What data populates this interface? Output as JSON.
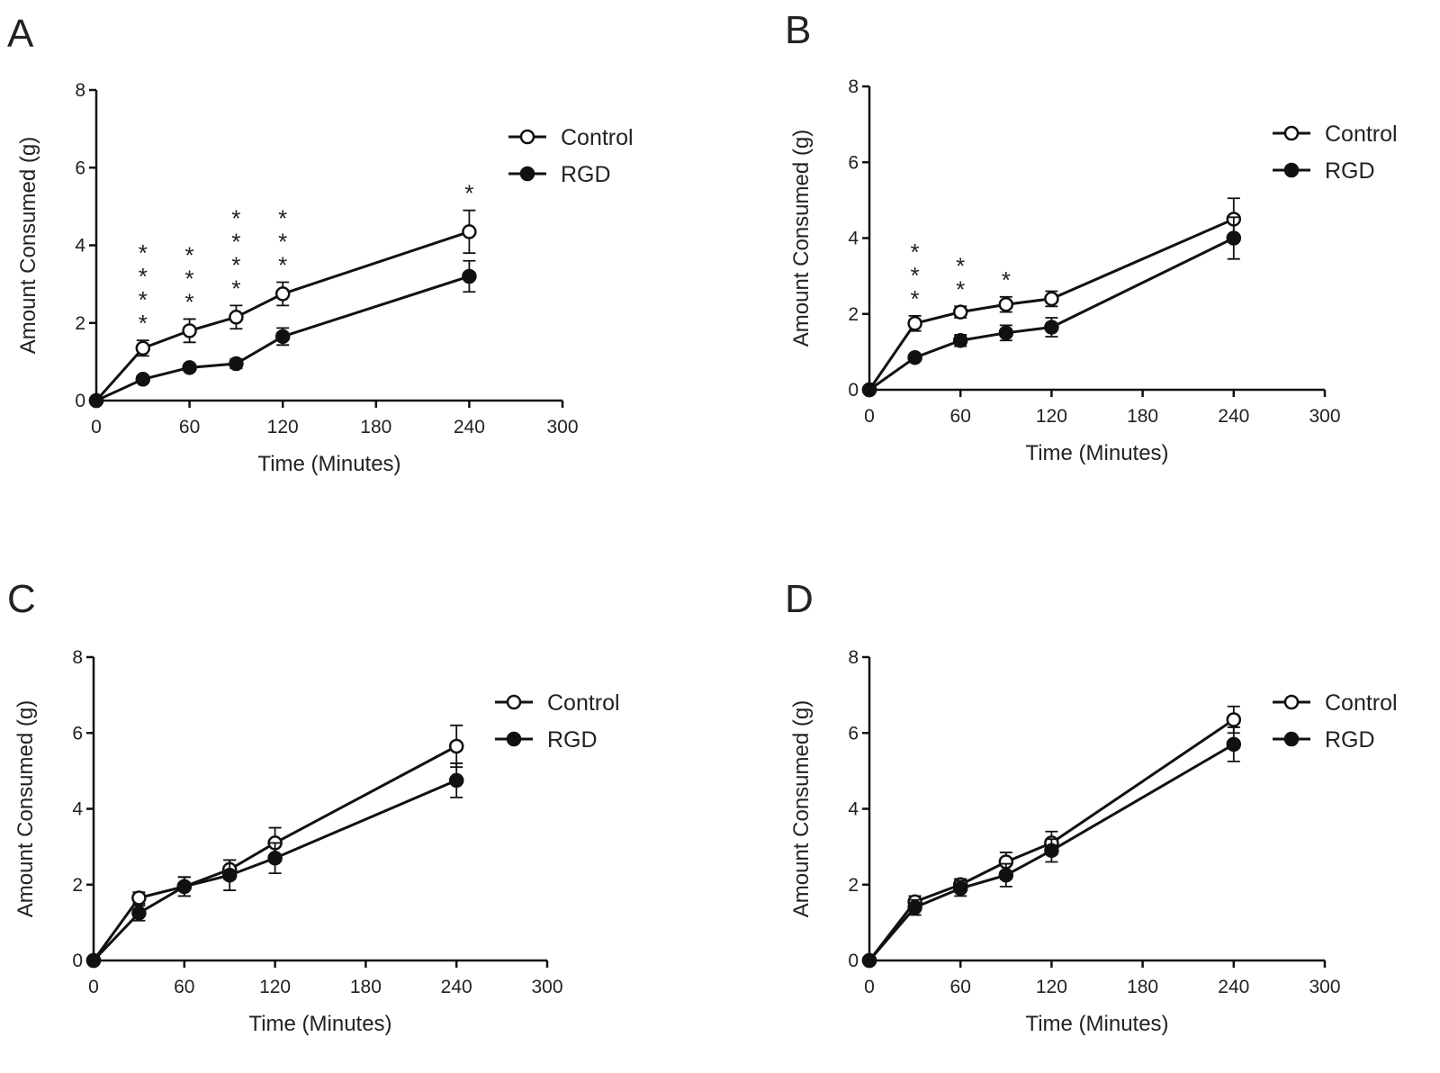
{
  "chart_data": [
    {
      "type": "line",
      "panel": "A",
      "xlabel": "Time (Minutes)",
      "ylabel": "Amount Consumed (g)",
      "x": [
        0,
        30,
        60,
        90,
        120,
        240
      ],
      "xlim": [
        0,
        300
      ],
      "xticks": [
        0,
        60,
        120,
        180,
        240,
        300
      ],
      "ylim": [
        0,
        8
      ],
      "yticks": [
        0,
        2,
        4,
        6,
        8
      ],
      "series": [
        {
          "name": "Control",
          "color": "#111111",
          "marker": "open",
          "values": [
            0,
            1.35,
            1.8,
            2.15,
            2.75,
            4.35
          ],
          "errors": [
            0,
            0.2,
            0.3,
            0.3,
            0.3,
            0.55
          ]
        },
        {
          "name": "RGD",
          "color": "#111111",
          "marker": "filled",
          "values": [
            0,
            0.55,
            0.85,
            0.95,
            1.65,
            3.2
          ],
          "errors": [
            0,
            0.08,
            0.08,
            0.12,
            0.22,
            0.4
          ]
        }
      ],
      "annotations": [
        {
          "x": 30,
          "text": "****"
        },
        {
          "x": 60,
          "text": "***"
        },
        {
          "x": 90,
          "text": "****"
        },
        {
          "x": 120,
          "text": "***"
        },
        {
          "x": 240,
          "text": "*"
        }
      ]
    },
    {
      "type": "line",
      "panel": "B",
      "xlabel": "Time (Minutes)",
      "ylabel": "Amount Consumed (g)",
      "x": [
        0,
        30,
        60,
        90,
        120,
        240
      ],
      "xlim": [
        0,
        300
      ],
      "xticks": [
        0,
        60,
        120,
        180,
        240,
        300
      ],
      "ylim": [
        0,
        8
      ],
      "yticks": [
        0,
        2,
        4,
        6,
        8
      ],
      "series": [
        {
          "name": "Control",
          "color": "#111111",
          "marker": "open",
          "values": [
            0,
            1.75,
            2.05,
            2.25,
            2.4,
            4.5
          ],
          "errors": [
            0,
            0.2,
            0.15,
            0.2,
            0.2,
            0.55
          ]
        },
        {
          "name": "RGD",
          "color": "#111111",
          "marker": "filled",
          "values": [
            0,
            0.85,
            1.3,
            1.5,
            1.65,
            4.0
          ],
          "errors": [
            0,
            0.08,
            0.15,
            0.2,
            0.25,
            0.55
          ]
        }
      ],
      "annotations": [
        {
          "x": 30,
          "text": "***"
        },
        {
          "x": 60,
          "text": "**"
        },
        {
          "x": 90,
          "text": "*"
        }
      ]
    },
    {
      "type": "line",
      "panel": "C",
      "xlabel": "Time (Minutes)",
      "ylabel": "Amount Consumed (g)",
      "x": [
        0,
        30,
        60,
        90,
        120,
        240
      ],
      "xlim": [
        0,
        300
      ],
      "xticks": [
        0,
        60,
        120,
        180,
        240,
        300
      ],
      "ylim": [
        0,
        8
      ],
      "yticks": [
        0,
        2,
        4,
        6,
        8
      ],
      "series": [
        {
          "name": "Control",
          "color": "#111111",
          "marker": "open",
          "values": [
            0,
            1.65,
            1.95,
            2.4,
            3.1,
            5.65
          ],
          "errors": [
            0,
            0.15,
            0.25,
            0.25,
            0.4,
            0.55
          ]
        },
        {
          "name": "RGD",
          "color": "#111111",
          "marker": "filled",
          "values": [
            0,
            1.25,
            1.95,
            2.25,
            2.7,
            4.75
          ],
          "errors": [
            0,
            0.2,
            0.25,
            0.4,
            0.4,
            0.45
          ]
        }
      ]
    },
    {
      "type": "line",
      "panel": "D",
      "xlabel": "Time (Minutes)",
      "ylabel": "Amount Consumed (g)",
      "x": [
        0,
        30,
        60,
        90,
        120,
        240
      ],
      "xlim": [
        0,
        300
      ],
      "xticks": [
        0,
        60,
        120,
        180,
        240,
        300
      ],
      "ylim": [
        0,
        8
      ],
      "yticks": [
        0,
        2,
        4,
        6,
        8
      ],
      "series": [
        {
          "name": "Control",
          "color": "#111111",
          "marker": "open",
          "values": [
            0,
            1.55,
            2.0,
            2.6,
            3.1,
            6.35
          ],
          "errors": [
            0,
            0.15,
            0.15,
            0.25,
            0.3,
            0.35
          ]
        },
        {
          "name": "RGD",
          "color": "#111111",
          "marker": "filled",
          "values": [
            0,
            1.4,
            1.9,
            2.25,
            2.9,
            5.7
          ],
          "errors": [
            0,
            0.2,
            0.2,
            0.3,
            0.3,
            0.45
          ]
        }
      ]
    }
  ]
}
